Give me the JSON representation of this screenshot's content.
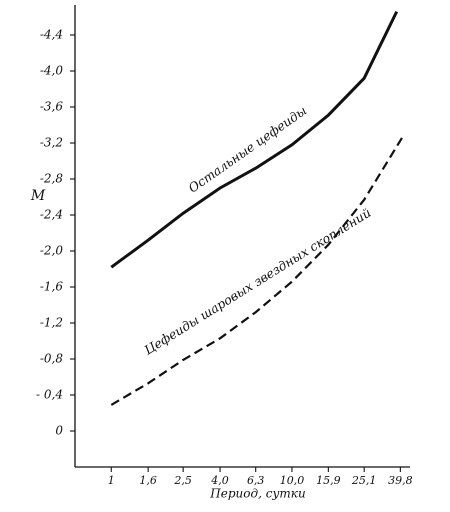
{
  "chart_data": {
    "type": "line",
    "y_label": "M",
    "x_label": "Период, сутки",
    "xscale": "log",
    "xlim": [
      0.63,
      45
    ],
    "ylim": [
      0.4,
      -4.7
    ],
    "xticks": [
      1,
      {
        "value": 1.6,
        "label": "1,6"
      },
      {
        "value": 2.5,
        "label": "2,5"
      },
      {
        "value": 4.0,
        "label": "4,0"
      },
      {
        "value": 6.3,
        "label": "6,3"
      },
      {
        "value": 10.0,
        "label": "10,0"
      },
      {
        "value": 15.9,
        "label": "15,9"
      },
      {
        "value": 25.1,
        "label": "25,1"
      },
      {
        "value": 39.8,
        "label": "39,8"
      }
    ],
    "yticks": [
      {
        "value": -4.4,
        "label": "-4,4"
      },
      {
        "value": -4.0,
        "label": "-4,0"
      },
      {
        "value": -3.6,
        "label": "-3,6"
      },
      {
        "value": -3.2,
        "label": "-3,2"
      },
      {
        "value": -2.8,
        "label": "-2,8"
      },
      {
        "value": -2.4,
        "label": "-2,4"
      },
      {
        "value": -2.0,
        "label": "-2,0"
      },
      {
        "value": -1.6,
        "label": "-1,6"
      },
      {
        "value": -1.2,
        "label": "-1,2"
      },
      {
        "value": -0.8,
        "label": "-0,8"
      },
      {
        "value": -0.4,
        "label": "- 0,4"
      },
      0
    ],
    "series": [
      {
        "name": "Остальные цефеиды",
        "color": "#111111",
        "dash": false,
        "x": [
          1,
          1.6,
          2.5,
          4.0,
          6.3,
          10.0,
          15.9,
          25.1,
          38
        ],
        "values": [
          -1.82,
          -2.12,
          -2.42,
          -2.7,
          -2.92,
          -3.18,
          -3.51,
          -3.92,
          -4.66
        ]
      },
      {
        "name": "Цефеиды шаровых звездных скоплений",
        "color": "#111111",
        "dash": true,
        "x": [
          1,
          1.6,
          2.5,
          4.0,
          6.3,
          10.0,
          15.9,
          25.1,
          41
        ],
        "values": [
          -0.29,
          -0.53,
          -0.79,
          -1.03,
          -1.32,
          -1.66,
          -2.07,
          -2.57,
          -3.27
        ]
      }
    ]
  }
}
